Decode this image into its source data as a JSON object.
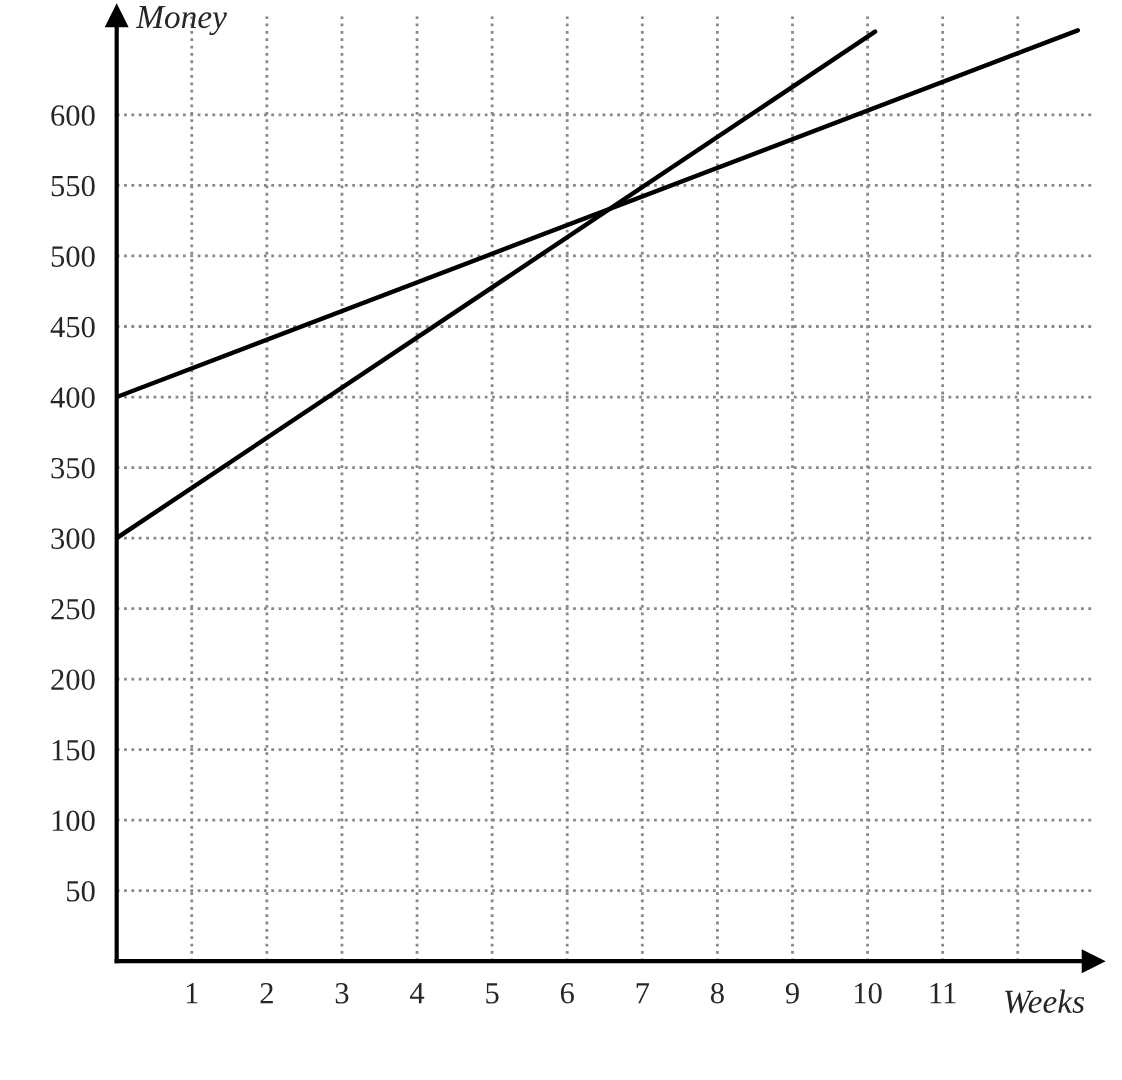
{
  "chart_data": {
    "type": "line",
    "xlabel": "Weeks",
    "ylabel": "Money",
    "series": [
      {
        "color": "#000000",
        "x": [
          0,
          12.8
        ],
        "values": [
          400,
          660
        ]
      },
      {
        "color": "#000000",
        "x": [
          0,
          10.1
        ],
        "values": [
          300,
          659
        ]
      }
    ],
    "xlim": [
      0,
      13
    ],
    "ylim": [
      0,
      670
    ],
    "xticks": [
      1,
      2,
      3,
      4,
      5,
      6,
      7,
      8,
      9,
      10,
      11,
      {
        "value": 12,
        "label": null
      }
    ],
    "yticks": [
      50,
      100,
      150,
      200,
      250,
      300,
      350,
      400,
      450,
      500,
      550,
      600
    ],
    "grid": true,
    "legend": false,
    "marker": "none",
    "line_style": "solid"
  }
}
